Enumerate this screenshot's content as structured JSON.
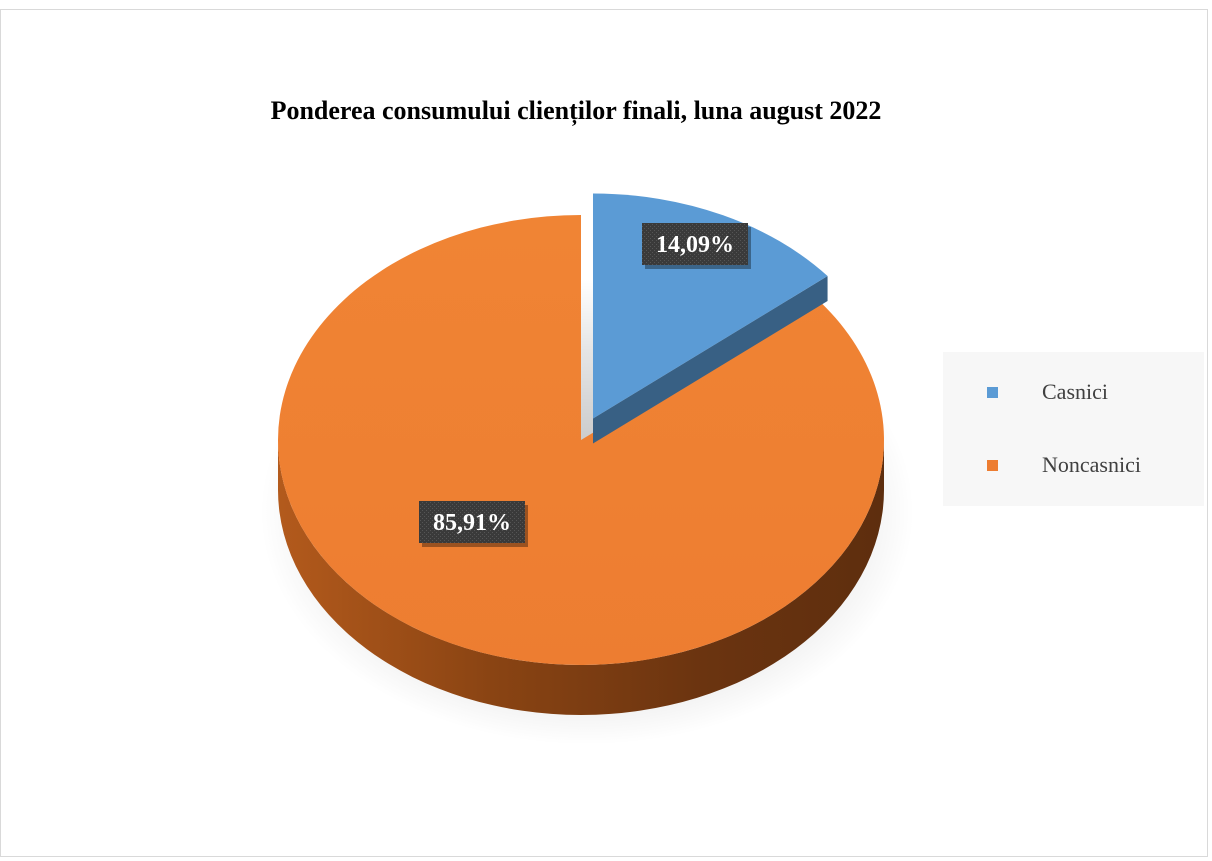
{
  "chart_data": {
    "type": "pie",
    "title": "Ponderea consumului clienților finali, luna august 2022",
    "categories": [
      "Casnici",
      "Noncasnici"
    ],
    "values": [
      14.09,
      85.91
    ],
    "data_labels": [
      "14,09%",
      "85,91%"
    ],
    "colors": [
      "#5b9bd5",
      "#ed7d31"
    ],
    "exploded": [
      "Casnici"
    ],
    "style": "3d",
    "legend_position": "right"
  }
}
